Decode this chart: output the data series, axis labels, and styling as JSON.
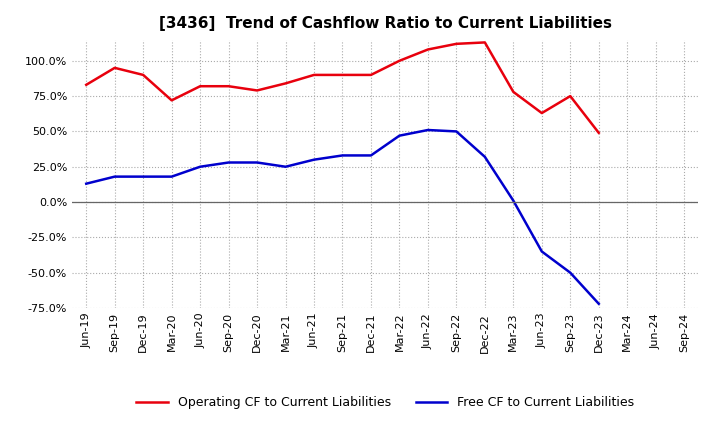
{
  "title": "[3436]  Trend of Cashflow Ratio to Current Liabilities",
  "x_labels": [
    "Jun-19",
    "Sep-19",
    "Dec-19",
    "Mar-20",
    "Jun-20",
    "Sep-20",
    "Dec-20",
    "Mar-21",
    "Jun-21",
    "Sep-21",
    "Dec-21",
    "Mar-22",
    "Jun-22",
    "Sep-22",
    "Dec-22",
    "Mar-23",
    "Jun-23",
    "Sep-23",
    "Dec-23",
    "Mar-24",
    "Jun-24",
    "Sep-24"
  ],
  "operating_cf": [
    83,
    95,
    90,
    72,
    82,
    82,
    79,
    84,
    90,
    90,
    90,
    100,
    108,
    112,
    113,
    78,
    63,
    75,
    49,
    null,
    null,
    null
  ],
  "free_cf": [
    13,
    18,
    18,
    18,
    25,
    28,
    28,
    25,
    30,
    33,
    33,
    47,
    51,
    50,
    32,
    1,
    -35,
    -50,
    -72,
    null,
    null,
    null
  ],
  "ylim": [
    -75,
    115
  ],
  "yticks": [
    -75,
    -50,
    -25,
    0,
    25,
    50,
    75,
    100
  ],
  "operating_color": "#e8000d",
  "free_color": "#0000cd",
  "background_color": "#ffffff",
  "grid_color": "#aaaaaa",
  "legend_op": "Operating CF to Current Liabilities",
  "legend_free": "Free CF to Current Liabilities"
}
